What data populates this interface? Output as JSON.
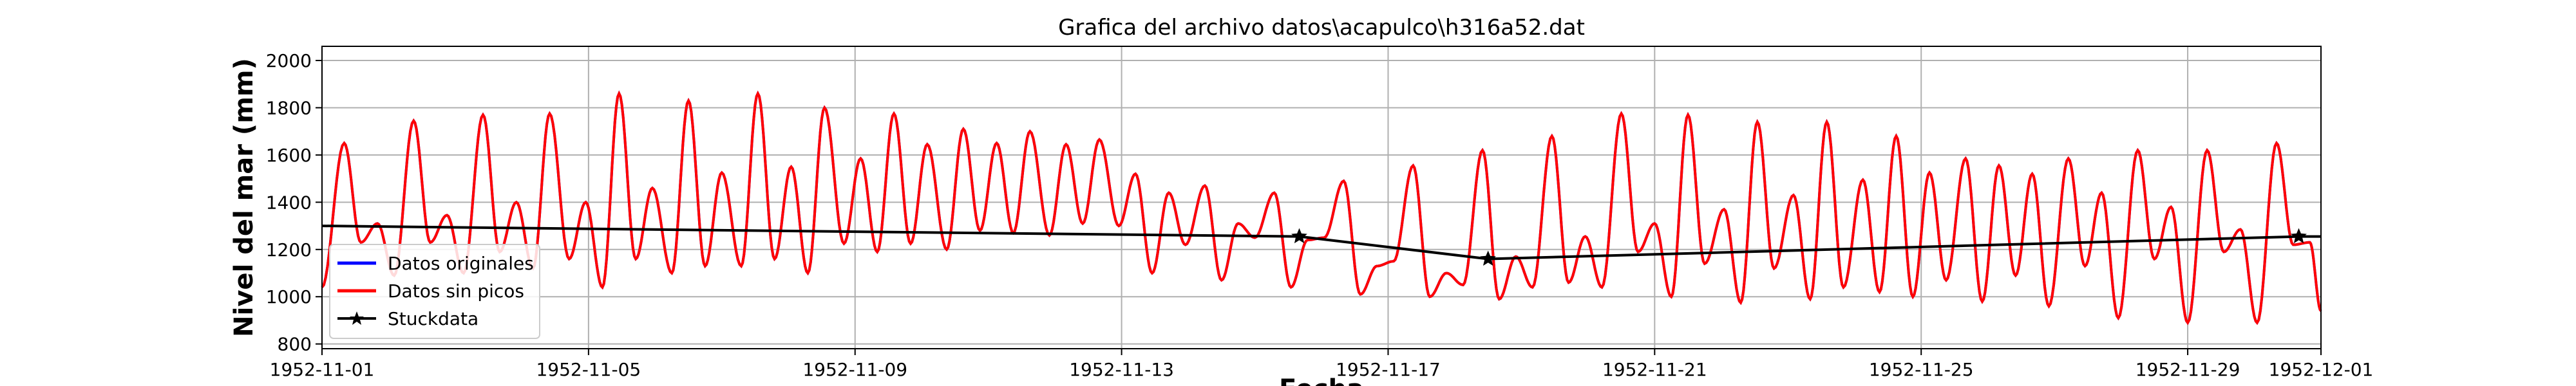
{
  "chart_data": {
    "type": "line",
    "title": "Grafica del archivo datos\\acapulco\\h316a52.dat",
    "xlabel": "Fecha",
    "ylabel": "Nivel del mar (mm)",
    "xlim": [
      "1952-11-01",
      "1952-12-01"
    ],
    "ylim": [
      780,
      2060
    ],
    "x_ticks": [
      "1952-11-01",
      "1952-11-05",
      "1952-11-09",
      "1952-11-13",
      "1952-11-17",
      "1952-11-21",
      "1952-11-25",
      "1952-11-29",
      "1952-12-01"
    ],
    "y_ticks": [
      800,
      1000,
      1200,
      1400,
      1600,
      1800,
      2000
    ],
    "grid": true,
    "legend_position": "lower-left",
    "series": [
      {
        "name": "Datos originales",
        "color": "#0000ff",
        "kind": "tide",
        "x_start": "1952-11-01",
        "x_end": "1952-12-01",
        "peaks": [
          [
            "1952-11-01T08:00",
            1650
          ],
          [
            "1952-11-01T20:00",
            1310
          ],
          [
            "1952-11-02T09:00",
            1745
          ],
          [
            "1952-11-02T21:00",
            1345
          ],
          [
            "1952-11-03T10:00",
            1770
          ],
          [
            "1952-11-03T22:00",
            1400
          ],
          [
            "1952-11-04T10:00",
            1775
          ],
          [
            "1952-11-04T23:00",
            1400
          ],
          [
            "1952-11-05T11:00",
            1860
          ],
          [
            "1952-11-05T23:00",
            1460
          ],
          [
            "1952-11-06T12:00",
            1830
          ],
          [
            "1952-11-07T00:00",
            1525
          ],
          [
            "1952-11-07T13:00",
            1860
          ],
          [
            "1952-11-08T01:00",
            1550
          ],
          [
            "1952-11-08T13:00",
            1800
          ],
          [
            "1952-11-09T02:00",
            1585
          ],
          [
            "1952-11-09T14:00",
            1775
          ],
          [
            "1952-11-10T02:00",
            1645
          ],
          [
            "1952-11-10T15:00",
            1710
          ],
          [
            "1952-11-11T03:00",
            1650
          ],
          [
            "1952-11-11T15:00",
            1700
          ],
          [
            "1952-11-12T04:00",
            1645
          ],
          [
            "1952-11-12T16:00",
            1665
          ],
          [
            "1952-11-13T05:00",
            1520
          ],
          [
            "1952-11-13T17:00",
            1440
          ],
          [
            "1952-11-14T06:00",
            1470
          ],
          [
            "1952-11-14T18:00",
            1310
          ],
          [
            "1952-11-15T07:00",
            1440
          ],
          [
            "1952-11-15T19:00",
            1240
          ],
          [
            "1952-11-16T08:00",
            1490
          ],
          [
            "1952-11-16T20:00",
            1130
          ],
          [
            "1952-11-17T09:00",
            1555
          ],
          [
            "1952-11-17T21:00",
            1100
          ],
          [
            "1952-11-18T10:00",
            1620
          ],
          [
            "1952-11-18T22:00",
            1170
          ],
          [
            "1952-11-19T11:00",
            1680
          ],
          [
            "1952-11-19T23:00",
            1255
          ],
          [
            "1952-11-20T12:00",
            1775
          ],
          [
            "1952-11-21T00:00",
            1310
          ],
          [
            "1952-11-21T12:00",
            1770
          ],
          [
            "1952-11-22T01:00",
            1370
          ],
          [
            "1952-11-22T13:00",
            1740
          ],
          [
            "1952-11-23T02:00",
            1430
          ],
          [
            "1952-11-23T14:00",
            1740
          ],
          [
            "1952-11-24T03:00",
            1495
          ],
          [
            "1952-11-24T15:00",
            1680
          ],
          [
            "1952-11-25T03:00",
            1525
          ],
          [
            "1952-11-25T16:00",
            1585
          ],
          [
            "1952-11-26T04:00",
            1555
          ],
          [
            "1952-11-26T16:00",
            1520
          ],
          [
            "1952-11-27T05:00",
            1585
          ],
          [
            "1952-11-27T17:00",
            1440
          ],
          [
            "1952-11-28T06:00",
            1620
          ],
          [
            "1952-11-28T18:00",
            1380
          ],
          [
            "1952-11-29T07:00",
            1620
          ],
          [
            "1952-11-29T19:00",
            1285
          ],
          [
            "1952-11-30T08:00",
            1650
          ],
          [
            "1952-11-30T20:00",
            1230
          ]
        ],
        "troughs": [
          [
            "1952-11-01T00:00",
            1040
          ],
          [
            "1952-11-01T14:00",
            1230
          ],
          [
            "1952-11-02T02:00",
            1090
          ],
          [
            "1952-11-02T15:00",
            1230
          ],
          [
            "1952-11-03T03:00",
            1100
          ],
          [
            "1952-11-03T16:00",
            1190
          ],
          [
            "1952-11-04T04:00",
            1120
          ],
          [
            "1952-11-04T17:00",
            1160
          ],
          [
            "1952-11-05T05:00",
            1040
          ],
          [
            "1952-11-05T17:00",
            1160
          ],
          [
            "1952-11-06T06:00",
            1100
          ],
          [
            "1952-11-06T18:00",
            1130
          ],
          [
            "1952-11-07T07:00",
            1130
          ],
          [
            "1952-11-07T19:00",
            1160
          ],
          [
            "1952-11-08T07:00",
            1100
          ],
          [
            "1952-11-08T20:00",
            1225
          ],
          [
            "1952-11-09T08:00",
            1190
          ],
          [
            "1952-11-09T20:00",
            1225
          ],
          [
            "1952-11-10T09:00",
            1200
          ],
          [
            "1952-11-10T21:00",
            1280
          ],
          [
            "1952-11-11T09:00",
            1270
          ],
          [
            "1952-11-11T22:00",
            1260
          ],
          [
            "1952-11-12T10:00",
            1310
          ],
          [
            "1952-11-12T23:00",
            1300
          ],
          [
            "1952-11-13T11:00",
            1100
          ],
          [
            "1952-11-13T23:00",
            1220
          ],
          [
            "1952-11-14T12:00",
            1070
          ],
          [
            "1952-11-15T00:00",
            1250
          ],
          [
            "1952-11-15T13:00",
            1040
          ],
          [
            "1952-11-16T01:00",
            1250
          ],
          [
            "1952-11-16T14:00",
            1010
          ],
          [
            "1952-11-17T02:00",
            1150
          ],
          [
            "1952-11-17T15:00",
            1000
          ],
          [
            "1952-11-18T03:00",
            1050
          ],
          [
            "1952-11-18T16:00",
            990
          ],
          [
            "1952-11-19T04:00",
            1040
          ],
          [
            "1952-11-19T17:00",
            1060
          ],
          [
            "1952-11-20T05:00",
            1040
          ],
          [
            "1952-11-20T18:00",
            1190
          ],
          [
            "1952-11-21T06:00",
            1000
          ],
          [
            "1952-11-21T18:00",
            1140
          ],
          [
            "1952-11-22T07:00",
            975
          ],
          [
            "1952-11-22T19:00",
            1120
          ],
          [
            "1952-11-23T08:00",
            990
          ],
          [
            "1952-11-23T20:00",
            1040
          ],
          [
            "1952-11-24T09:00",
            1020
          ],
          [
            "1952-11-24T21:00",
            1000
          ],
          [
            "1952-11-25T09:00",
            1070
          ],
          [
            "1952-11-25T22:00",
            980
          ],
          [
            "1952-11-26T10:00",
            1090
          ],
          [
            "1952-11-26T22:00",
            960
          ],
          [
            "1952-11-27T11:00",
            1130
          ],
          [
            "1952-11-27T23:00",
            910
          ],
          [
            "1952-11-28T12:00",
            1160
          ],
          [
            "1952-11-29T00:00",
            890
          ],
          [
            "1952-11-29T13:00",
            1190
          ],
          [
            "1952-11-30T01:00",
            890
          ],
          [
            "1952-11-30T14:00",
            1220
          ],
          [
            "1952-12-01T00:00",
            940
          ]
        ]
      },
      {
        "name": "Datos sin picos",
        "color": "#ff0000",
        "same_as": "Datos originales"
      },
      {
        "name": "Stuckdata",
        "color": "#000000",
        "marker": "star",
        "x": [
          "1952-11-01T00:00",
          "1952-11-15T16:00",
          "1952-11-18T12:00",
          "1952-11-30T16:00",
          "1952-12-01T00:00"
        ],
        "y": [
          1300,
          1255,
          1160,
          1255,
          1255
        ],
        "marker_x": [
          "1952-11-15T16:00",
          "1952-11-18T12:00",
          "1952-11-30T16:00"
        ],
        "marker_y": [
          1255,
          1160,
          1255
        ]
      }
    ]
  }
}
